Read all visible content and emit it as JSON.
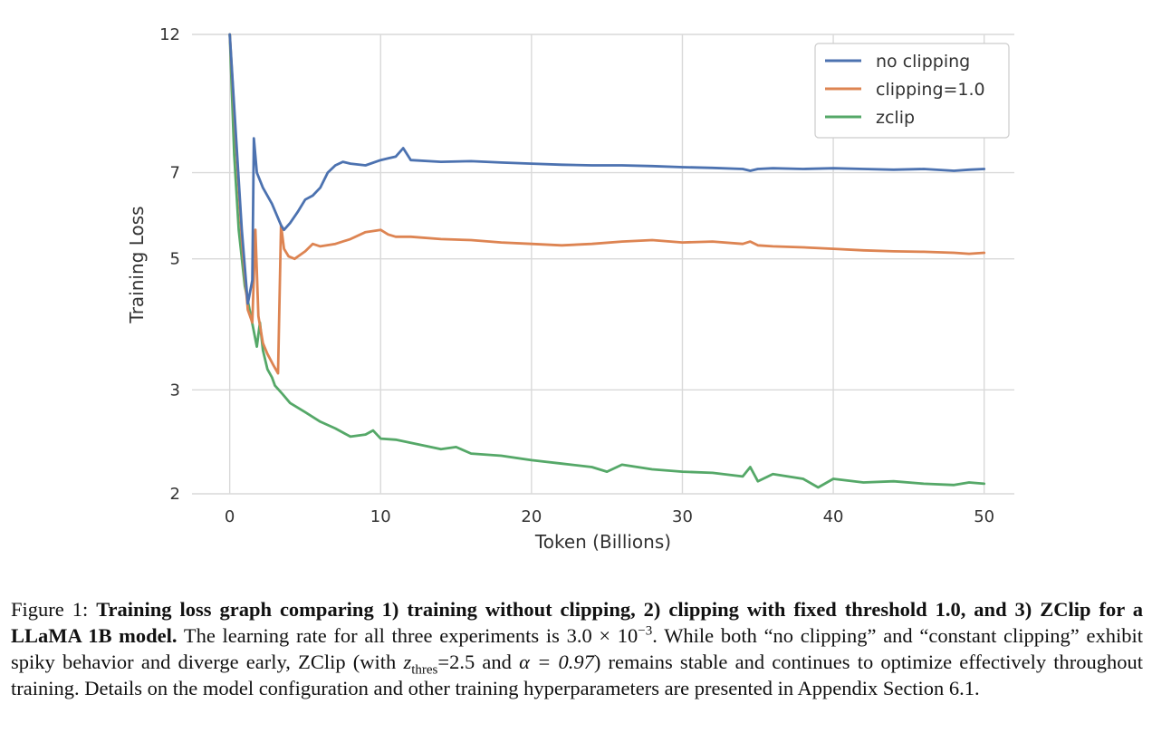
{
  "chart_data": {
    "type": "line",
    "title": "",
    "xlabel": "Token (Billions)",
    "ylabel": "Training Loss",
    "xlim": [
      -2.5,
      52
    ],
    "ylim": [
      2,
      12
    ],
    "y_scale": "log",
    "xticks": [
      0,
      10,
      20,
      30,
      40,
      50
    ],
    "yticks": [
      2,
      3,
      5,
      7,
      12
    ],
    "xtick_labels": [
      "0",
      "10",
      "20",
      "30",
      "40",
      "50"
    ],
    "ytick_labels": [
      "2",
      "3",
      "5",
      "7",
      "12"
    ],
    "grid": true,
    "legend_position": "top-right",
    "series": [
      {
        "name": "no clipping",
        "color": "#4C72B0",
        "x": [
          0,
          0.4,
          0.8,
          1.2,
          1.5,
          1.6,
          1.8,
          2.2,
          2.8,
          3.4,
          3.6,
          4.0,
          4.5,
          5.0,
          5.5,
          6.0,
          6.5,
          7.0,
          7.5,
          8.0,
          9.0,
          10.0,
          10.5,
          11.0,
          11.5,
          12.0,
          14.0,
          16.0,
          18.0,
          20.0,
          22.0,
          24.0,
          26.0,
          28.0,
          30.0,
          32.0,
          34.0,
          34.5,
          35.0,
          36.0,
          38.0,
          40.0,
          42.0,
          44.0,
          46.0,
          48.0,
          49.0,
          50.0
        ],
        "y": [
          12,
          8.2,
          5.6,
          4.2,
          4.6,
          8.0,
          7.0,
          6.6,
          6.2,
          5.7,
          5.6,
          5.75,
          6.0,
          6.3,
          6.4,
          6.6,
          7.0,
          7.2,
          7.3,
          7.25,
          7.2,
          7.35,
          7.4,
          7.45,
          7.7,
          7.35,
          7.3,
          7.32,
          7.28,
          7.25,
          7.22,
          7.2,
          7.2,
          7.18,
          7.15,
          7.13,
          7.1,
          7.05,
          7.1,
          7.12,
          7.1,
          7.12,
          7.1,
          7.08,
          7.1,
          7.05,
          7.08,
          7.1
        ]
      },
      {
        "name": "clipping=1.0",
        "color": "#DD8452",
        "x": [
          0,
          0.4,
          0.8,
          1.2,
          1.5,
          1.7,
          1.9,
          2.2,
          2.5,
          2.9,
          3.2,
          3.4,
          3.6,
          3.9,
          4.3,
          5.0,
          5.5,
          6.0,
          7.0,
          8.0,
          9.0,
          10.0,
          10.5,
          11.0,
          12.0,
          14.0,
          16.0,
          18.0,
          20.0,
          22.0,
          24.0,
          26.0,
          28.0,
          30.0,
          32.0,
          34.0,
          34.5,
          35.0,
          36.0,
          38.0,
          40.0,
          42.0,
          44.0,
          46.0,
          48.0,
          49.0,
          50.0
        ],
        "y": [
          12,
          8.0,
          5.4,
          4.1,
          3.9,
          5.6,
          4.0,
          3.6,
          3.45,
          3.3,
          3.2,
          5.7,
          5.2,
          5.05,
          5.0,
          5.15,
          5.3,
          5.25,
          5.3,
          5.4,
          5.55,
          5.6,
          5.5,
          5.45,
          5.45,
          5.4,
          5.38,
          5.33,
          5.3,
          5.27,
          5.3,
          5.35,
          5.38,
          5.33,
          5.35,
          5.3,
          5.35,
          5.27,
          5.25,
          5.23,
          5.2,
          5.17,
          5.15,
          5.14,
          5.12,
          5.1,
          5.12
        ]
      },
      {
        "name": "zclip",
        "color": "#55A868",
        "x": [
          0,
          0.3,
          0.6,
          1.0,
          1.4,
          1.8,
          2.0,
          2.2,
          2.5,
          2.8,
          3.0,
          3.5,
          4.0,
          5.0,
          6.0,
          7.0,
          8.0,
          9.0,
          9.5,
          10.0,
          11.0,
          12.0,
          14.0,
          15.0,
          16.0,
          18.0,
          20.0,
          22.0,
          24.0,
          25.0,
          26.0,
          28.0,
          30.0,
          32.0,
          34.0,
          34.5,
          35.0,
          36.0,
          38.0,
          39.0,
          40.0,
          42.0,
          44.0,
          46.0,
          48.0,
          49.0,
          50.0
        ],
        "y": [
          12,
          7.5,
          5.6,
          4.5,
          4.0,
          3.55,
          3.9,
          3.5,
          3.25,
          3.15,
          3.05,
          2.95,
          2.85,
          2.75,
          2.65,
          2.58,
          2.5,
          2.52,
          2.56,
          2.48,
          2.47,
          2.44,
          2.38,
          2.4,
          2.34,
          2.32,
          2.28,
          2.25,
          2.22,
          2.18,
          2.24,
          2.2,
          2.18,
          2.17,
          2.14,
          2.22,
          2.1,
          2.16,
          2.12,
          2.05,
          2.12,
          2.09,
          2.1,
          2.08,
          2.07,
          2.09,
          2.08
        ]
      }
    ]
  },
  "caption": {
    "figure_label": "Figure 1:",
    "bold_text": "Training loss graph comparing 1) training without clipping, 2) clipping with fixed threshold 1.0, and 3) ZClip for a LLaMA 1B model.",
    "text_1": "The learning rate for all three experiments is 3.0 × 10",
    "lr_exponent": "−3",
    "text_2": ". While both “no clipping” and “constant clipping” exhibit spiky behavior and diverge early, ZClip (with",
    "z_symbol": "z",
    "z_subscript": "thres",
    "z_value": "=2.5 and",
    "alpha_expr": "α = 0.97",
    "text_3": ") remains stable and continues to optimize effectively throughout training. Details on the model configuration and other training hyperparameters are presented in Appendix Section 6.1."
  }
}
